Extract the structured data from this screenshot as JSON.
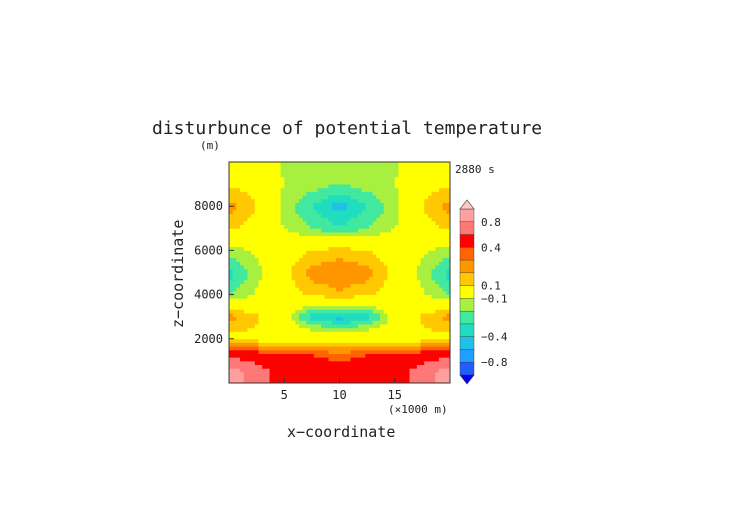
{
  "chart_data": {
    "type": "heatmap",
    "title": "disturbunce of potential temperature",
    "ylabel": "z−coordinate",
    "yunit": "(m)",
    "xlabel": "x−coordinate",
    "xunit": "(×1000 m)",
    "time_label": "2880 s",
    "xlim": [
      0,
      20
    ],
    "ylim": [
      0,
      10000
    ],
    "x_ticks": [
      {
        "value": 5,
        "label": "5"
      },
      {
        "value": 10,
        "label": "10"
      },
      {
        "value": 15,
        "label": "15"
      }
    ],
    "y_ticks": [
      {
        "value": 2000,
        "label": "2000"
      },
      {
        "value": 4000,
        "label": "4000"
      },
      {
        "value": 6000,
        "label": "6000"
      },
      {
        "value": 8000,
        "label": "8000"
      }
    ],
    "levels": [
      -1.0,
      -0.8,
      -0.6,
      -0.4,
      -0.3,
      -0.2,
      -0.1,
      0.1,
      0.2,
      0.3,
      0.4,
      0.6,
      0.8,
      1.0
    ],
    "level_colors": [
      "#0000ff",
      "#1f5fff",
      "#1f9fff",
      "#20c0e8",
      "#20dcc0",
      "#40e8a0",
      "#a8f040",
      "#ffff00",
      "#ffc800",
      "#ff9600",
      "#ff6400",
      "#ff0000",
      "#ff7878",
      "#ffa0a0",
      "#ffc8c8"
    ],
    "colorbar_labels": [
      {
        "value": 0.8,
        "label": "0.8"
      },
      {
        "value": 0.4,
        "label": "0.4"
      },
      {
        "value": 0.1,
        "label": "0.1"
      },
      {
        "value": -0.1,
        "label": "−0.1"
      },
      {
        "value": -0.4,
        "label": "−0.4"
      },
      {
        "value": -0.8,
        "label": "−0.8"
      }
    ],
    "field": {
      "x": [
        0,
        2.5,
        5,
        7.5,
        10,
        12.5,
        15,
        17.5,
        20
      ],
      "z": [
        500,
        1250,
        2000,
        3000,
        4000,
        5000,
        6000,
        7000,
        8000,
        9000,
        9750
      ],
      "values": [
        [
          0.9,
          0.7,
          0.5,
          0.5,
          0.5,
          0.5,
          0.5,
          0.7,
          0.9
        ],
        [
          0.55,
          0.5,
          0.45,
          0.4,
          0.35,
          0.4,
          0.45,
          0.5,
          0.55
        ],
        [
          0.05,
          0.05,
          0.05,
          0.05,
          0.05,
          0.05,
          0.05,
          0.05,
          0.05
        ],
        [
          0.25,
          0.12,
          -0.05,
          -0.35,
          -0.45,
          -0.35,
          -0.05,
          0.12,
          0.25
        ],
        [
          -0.2,
          -0.08,
          0.05,
          0.12,
          0.18,
          0.12,
          0.05,
          -0.08,
          -0.2
        ],
        [
          -0.35,
          -0.15,
          0.05,
          0.25,
          0.28,
          0.25,
          0.05,
          -0.15,
          -0.35
        ],
        [
          -0.15,
          -0.08,
          0.03,
          0.1,
          0.15,
          0.1,
          0.03,
          -0.08,
          -0.15
        ],
        [
          0.12,
          0.05,
          -0.1,
          -0.2,
          -0.28,
          -0.2,
          -0.1,
          0.05,
          0.12
        ],
        [
          0.25,
          0.1,
          -0.15,
          -0.3,
          -0.45,
          -0.3,
          -0.15,
          0.1,
          0.25
        ],
        [
          0.08,
          0.05,
          -0.1,
          -0.15,
          -0.2,
          -0.15,
          -0.1,
          0.05,
          0.08
        ],
        [
          0.05,
          0.05,
          -0.12,
          -0.15,
          -0.15,
          -0.15,
          -0.12,
          0.05,
          0.05
        ]
      ]
    }
  }
}
